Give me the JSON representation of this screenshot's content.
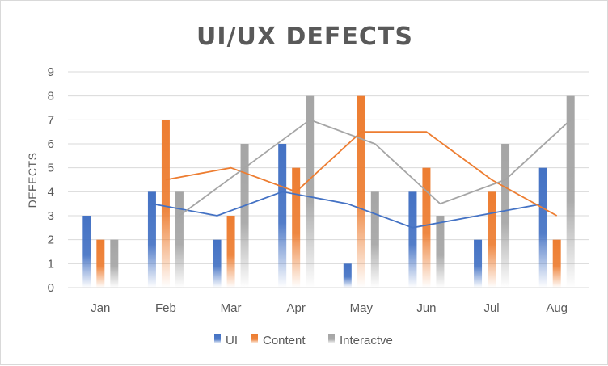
{
  "chart_data": {
    "type": "bar",
    "title": "UI/UX DEFECTS",
    "xlabel": "",
    "ylabel": "DEFECTS",
    "ylim": [
      0,
      9
    ],
    "yticks": [
      "0",
      "1",
      "2",
      "3",
      "4",
      "5",
      "6",
      "7",
      "8",
      "9"
    ],
    "grid": true,
    "legend_position": "bottom",
    "categories": [
      "Jan",
      "Feb",
      "Mar",
      "Apr",
      "May",
      "Jun",
      "Jul",
      "Aug"
    ],
    "series": [
      {
        "name": "UI",
        "color": "#4472c4",
        "values": [
          3,
          4,
          2,
          6,
          1,
          4,
          2,
          5
        ]
      },
      {
        "name": "Content",
        "color": "#ed7d31",
        "values": [
          2,
          7,
          3,
          5,
          8,
          5,
          4,
          2
        ]
      },
      {
        "name": "Interactve",
        "color": "#a5a5a5",
        "values": [
          2,
          4,
          6,
          8,
          4,
          3,
          6,
          8
        ]
      }
    ],
    "trendlines": [
      {
        "series": "UI",
        "type": "moving-average-2",
        "color": "#4472c4"
      },
      {
        "series": "Content",
        "type": "moving-average-2",
        "color": "#ed7d31"
      },
      {
        "series": "Interactve",
        "type": "moving-average-2",
        "color": "#a5a5a5"
      }
    ]
  }
}
